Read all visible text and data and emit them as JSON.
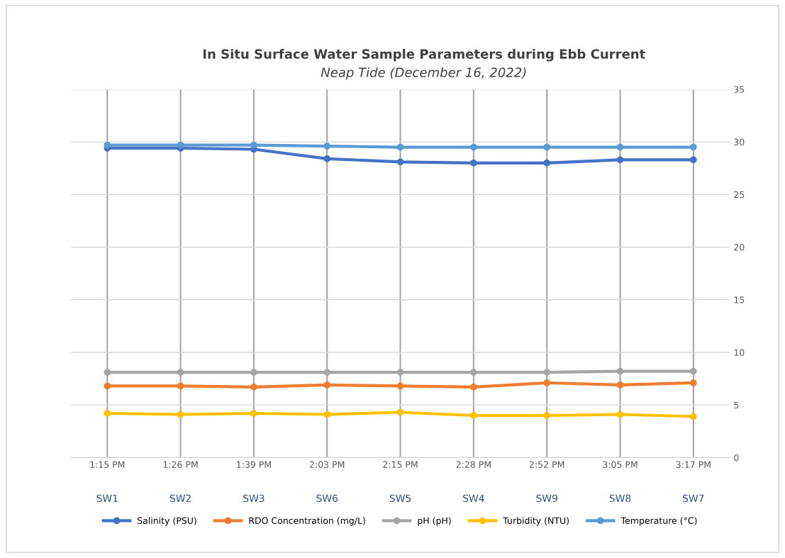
{
  "chart_data": {
    "type": "line",
    "title": "In Situ Surface Water Sample Parameters during Ebb Current",
    "subtitle": "Neap Tide (December 16, 2022)",
    "categories": [
      "1:15 PM\nSW1",
      "1:26 PM\nSW2",
      "1:39 PM\nSW3",
      "2:03 PM\nSW6",
      "2:15 PM\nSW5",
      "2:28 PM\nSW4",
      "2:52 PM\nSW9",
      "3:05 PM\nSW8",
      "3:17 PM\nSW7"
    ],
    "series": [
      {
        "name": "Salinity (PSU)",
        "color": "#4472c4",
        "values": [
          29.4,
          29.4,
          29.3,
          28.4,
          28.1,
          28.0,
          28.0,
          28.3,
          28.3
        ]
      },
      {
        "name": "RDO Concentration (mg/L)",
        "color": "#ed7d31",
        "values": [
          6.8,
          6.8,
          6.7,
          6.9,
          6.8,
          6.7,
          7.1,
          6.9,
          7.1
        ]
      },
      {
        "name": "pH (pH)",
        "color": "#a5a5a5",
        "values": [
          8.1,
          8.1,
          8.1,
          8.1,
          8.1,
          8.1,
          8.1,
          8.2,
          8.2
        ]
      },
      {
        "name": "Turbidity (NTU)",
        "color": "#ffc000",
        "values": [
          4.2,
          4.1,
          4.2,
          4.1,
          4.3,
          4.0,
          4.0,
          4.1,
          3.9
        ]
      },
      {
        "name": "Temperature (°C)",
        "color": "#5b9bd5",
        "values": [
          29.7,
          29.7,
          29.7,
          29.6,
          29.5,
          29.5,
          29.5,
          29.5,
          29.5
        ]
      }
    ],
    "ylim": [
      0,
      35
    ],
    "yticks": [
      0,
      5,
      10,
      15,
      20,
      25,
      30,
      35
    ],
    "grid": true,
    "legend": "bottom",
    "marker": "circle",
    "line_style": "solid"
  }
}
